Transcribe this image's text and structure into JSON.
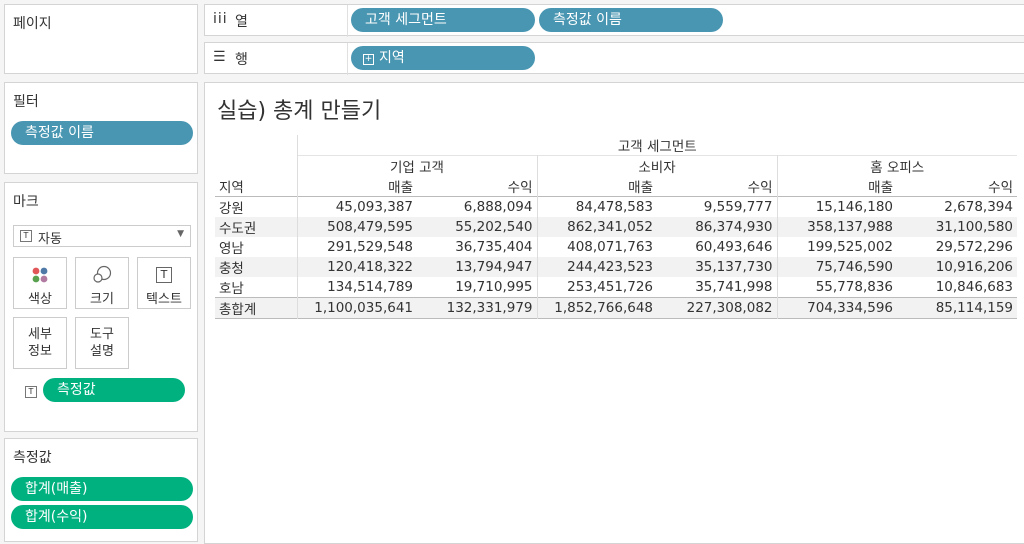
{
  "pages": {
    "title": "페이지"
  },
  "columns_shelf": {
    "label": "열",
    "pills": [
      "고객 세그먼트",
      "측정값 이름"
    ]
  },
  "rows_shelf": {
    "label": "행",
    "pills": [
      "지역"
    ]
  },
  "filters": {
    "title": "필터",
    "pills": [
      "측정값 이름"
    ]
  },
  "marks": {
    "title": "마크",
    "type": "자동",
    "cards": {
      "color": "색상",
      "size": "크기",
      "text": "텍스트",
      "detail": "세부\n정보",
      "tooltip": "도구\n설명"
    },
    "detail_line1": "세부",
    "detail_line2": "정보",
    "tooltip_line1": "도구",
    "tooltip_line2": "설명",
    "text_pill": "측정값"
  },
  "measures": {
    "title": "측정값",
    "pills": [
      "합계(매출)",
      "합계(수익)"
    ]
  },
  "view": {
    "title": "실습) 총계 만들기",
    "top_header": "고객 세그먼트",
    "row_header": "지역",
    "segments": [
      "기업 고객",
      "소비자",
      "홈 오피스"
    ],
    "measures": [
      "매출",
      "수익"
    ],
    "rows": [
      {
        "region": "강원",
        "values": [
          "45,093,387",
          "6,888,094",
          "84,478,583",
          "9,559,777",
          "15,146,180",
          "2,678,394"
        ]
      },
      {
        "region": "수도권",
        "values": [
          "508,479,595",
          "55,202,540",
          "862,341,052",
          "86,374,930",
          "358,137,988",
          "31,100,580"
        ]
      },
      {
        "region": "영남",
        "values": [
          "291,529,548",
          "36,735,404",
          "408,071,763",
          "60,493,646",
          "199,525,002",
          "29,572,296"
        ]
      },
      {
        "region": "충청",
        "values": [
          "120,418,322",
          "13,794,947",
          "244,423,523",
          "35,137,730",
          "75,746,590",
          "10,916,206"
        ]
      },
      {
        "region": "호남",
        "values": [
          "134,514,789",
          "19,710,995",
          "253,451,726",
          "35,741,998",
          "55,778,836",
          "10,846,683"
        ]
      },
      {
        "region": "총합계",
        "values": [
          "1,100,035,641",
          "132,331,979",
          "1,852,766,648",
          "227,308,082",
          "704,334,596",
          "85,114,159"
        ]
      }
    ]
  },
  "colors": {
    "pill_blue": "#4996b2",
    "pill_green": "#00b180"
  }
}
